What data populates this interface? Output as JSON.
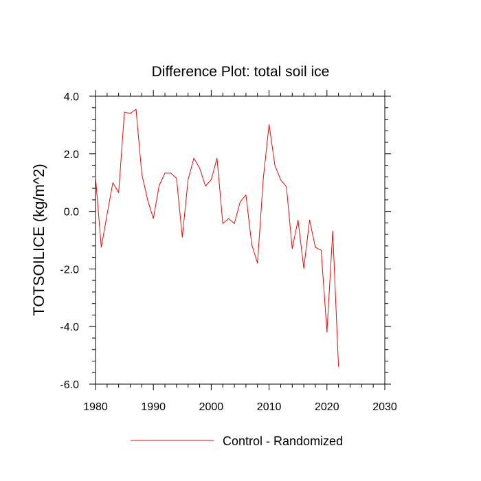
{
  "chart_data": {
    "type": "line",
    "title": "Difference Plot: total soil ice",
    "ylabel": "TOTSOILICE  (kg/m^2)",
    "xlabel": "",
    "xlim": [
      1980,
      2030
    ],
    "ylim": [
      -6.0,
      4.0
    ],
    "x_ticks": [
      1980,
      1990,
      2000,
      2010,
      2020,
      2030
    ],
    "x_tick_labels": [
      "1980",
      "1990",
      "2000",
      "2010",
      "2020",
      "2030"
    ],
    "y_ticks": [
      -6,
      -4,
      -2,
      0,
      2,
      4
    ],
    "y_tick_labels": [
      "-6.0",
      "-4.0",
      "-2.0",
      "0.0",
      "2.0",
      "4.0"
    ],
    "grid": false,
    "legend_position": "bottom-center",
    "series": [
      {
        "name": "Control - Randomized",
        "color": "#ff0000",
        "x": [
          1980,
          1981,
          1982,
          1983,
          1984,
          1985,
          1986,
          1987,
          1988,
          1989,
          1990,
          1991,
          1992,
          1993,
          1994,
          1995,
          1996,
          1997,
          1998,
          1999,
          2000,
          2001,
          2002,
          2003,
          2004,
          2005,
          2006,
          2007,
          2008,
          2009,
          2010,
          2011,
          2012,
          2013,
          2014,
          2015,
          2016,
          2017,
          2018,
          2019,
          2020,
          2021,
          2022
        ],
        "values": [
          1.2,
          -1.25,
          -0.1,
          1.0,
          0.65,
          3.45,
          3.4,
          3.55,
          1.3,
          0.4,
          -0.25,
          0.9,
          1.33,
          1.33,
          1.15,
          -0.9,
          1.1,
          1.85,
          1.5,
          0.88,
          1.1,
          1.85,
          -0.42,
          -0.25,
          -0.42,
          0.33,
          0.57,
          -1.15,
          -1.8,
          1.15,
          3.02,
          1.6,
          1.1,
          0.85,
          -1.3,
          -0.3,
          -1.98,
          -0.3,
          -1.25,
          -1.35,
          -4.2,
          -0.68,
          -5.4
        ]
      }
    ]
  }
}
